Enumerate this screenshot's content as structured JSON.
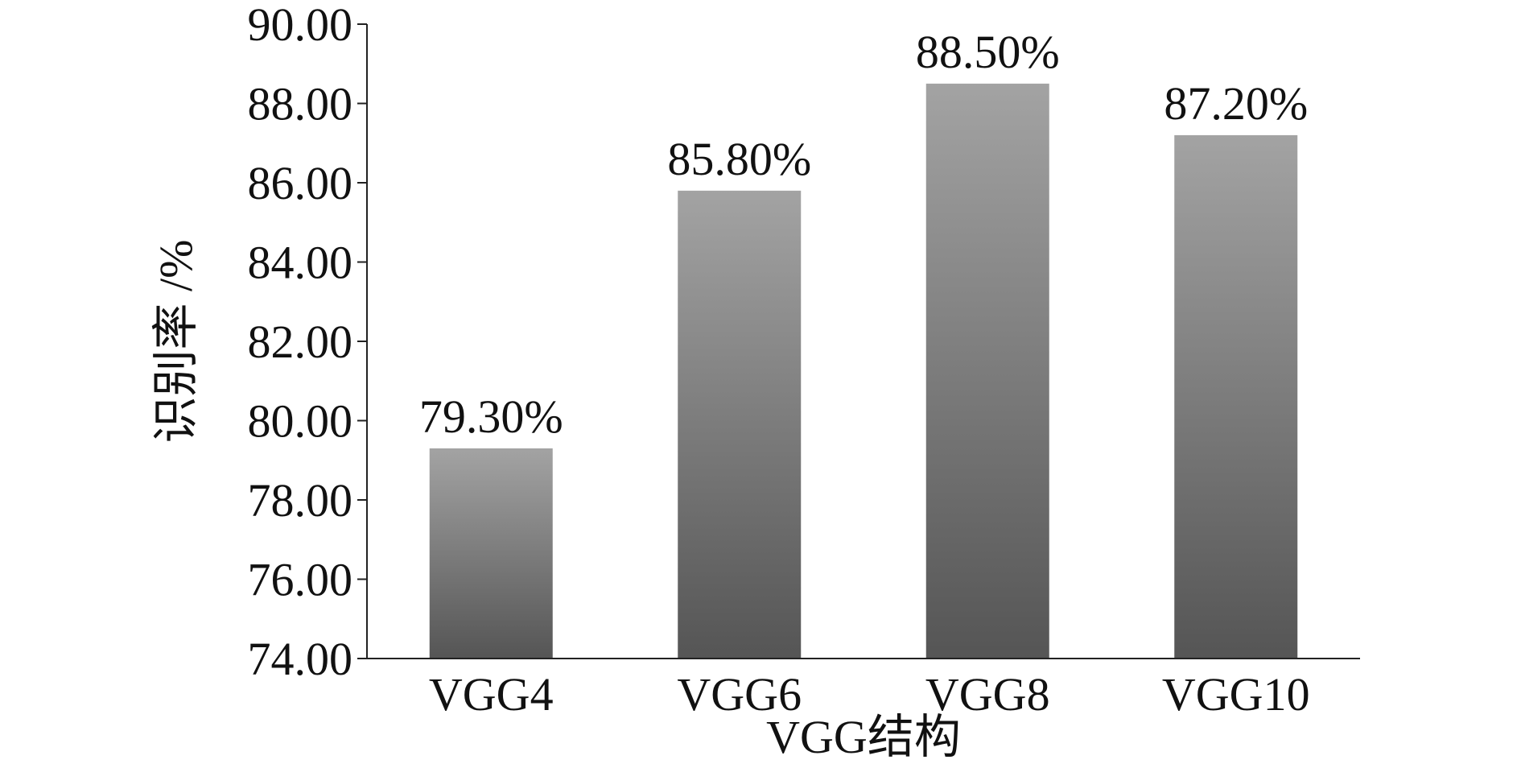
{
  "chart_data": {
    "type": "bar",
    "categories": [
      "VGG4",
      "VGG6",
      "VGG8",
      "VGG10"
    ],
    "values": [
      79.3,
      85.8,
      88.5,
      87.2
    ],
    "data_labels": [
      "79.30%",
      "85.80%",
      "88.50%",
      "87.20%"
    ],
    "xlabel": "VGG结构",
    "ylabel": "识别率 /%",
    "ylim": [
      74,
      90
    ],
    "yticks": [
      74,
      76,
      78,
      80,
      82,
      84,
      86,
      88,
      90
    ],
    "ytick_labels": [
      "74.00",
      "76.00",
      "78.00",
      "80.00",
      "82.00",
      "84.00",
      "86.00",
      "88.00",
      "90.00"
    ],
    "grid": false,
    "legend": "none",
    "colors": {
      "bar_top": "#a3a3a3",
      "bar_bottom": "#555555",
      "axis": "#222222"
    }
  }
}
